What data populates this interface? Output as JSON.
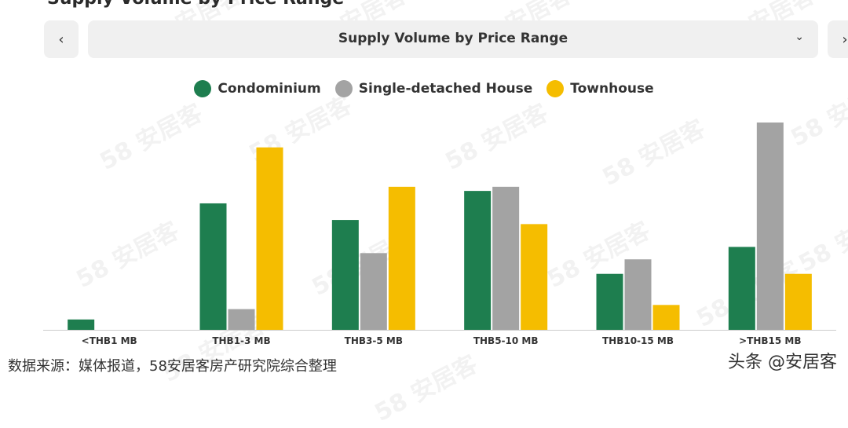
{
  "header": {
    "title_fragment": "Supply Volume by Price Range"
  },
  "navigation": {
    "prev_icon": "chevron-left-icon",
    "prev_glyph": "‹",
    "next_icon": "chevron-right-icon",
    "next_glyph": "›"
  },
  "selector": {
    "label": "Supply Volume by Price Range",
    "icon": "chevron-down-icon",
    "glyph": "⌄"
  },
  "colors": {
    "condominium": "#1e7e4f",
    "house": "#a3a3a3",
    "townhouse": "#f5bd00",
    "axis": "#cccccc"
  },
  "chart_data": {
    "type": "bar",
    "title": "",
    "xlabel": "",
    "ylabel": "",
    "ylim": [
      0,
      100
    ],
    "grid": false,
    "legend_position": "top-center",
    "categories": [
      "<THB1 MB",
      "THB1-3 MB",
      "THB3-5 MB",
      "THB5-10 MB",
      "THB10-15 MB",
      ">THB15 MB"
    ],
    "series": [
      {
        "name": "Condominium",
        "color": "#1e7e4f",
        "values": [
          5,
          61,
          53,
          67,
          27,
          40
        ]
      },
      {
        "name": "Single-detached House",
        "color": "#a3a3a3",
        "values": [
          0,
          10,
          37,
          69,
          34,
          100
        ]
      },
      {
        "name": "Townhouse",
        "color": "#f5bd00",
        "values": [
          0,
          88,
          69,
          51,
          12,
          27
        ]
      }
    ]
  },
  "footer": {
    "source": "数据来源：媒体报道，58安居客房产研究院综合整理",
    "attribution": "头条 @安居客"
  },
  "watermark": {
    "text": "58 安居客"
  }
}
